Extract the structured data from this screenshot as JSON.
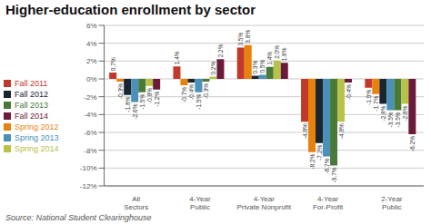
{
  "chart_data": {
    "type": "bar",
    "title": "Higher-education enrollment by sector",
    "source": "Source: National Student Clearinghouse",
    "categories": [
      "All\nSectors",
      "4-Year\nPublic",
      "4-Year\nPrivate Nonprofit",
      "4-Year\nFor-Profit",
      "2-Year\nPublic"
    ],
    "series": [
      {
        "name": "Fall 2011",
        "color": "#C1392B",
        "values": [
          0.7,
          1.4,
          3.5,
          -4.8,
          -1.0
        ],
        "value_labels": [
          "0.7%",
          "1.4%",
          "3.5%",
          "-4.8%",
          "-1.0%"
        ]
      },
      {
        "name": "Spring 2012",
        "color": "#E8820C",
        "values": [
          -0.3,
          -0.7,
          3.8,
          -8.2,
          -1.7
        ],
        "value_labels": [
          "-0.3%",
          "-0.7%",
          "3.8%",
          "-8.2%",
          "-1.7%"
        ]
      },
      {
        "name": "Fall 2012",
        "color": "#1A252F",
        "values": [
          -1.8,
          -0.4,
          0.35,
          -7.2,
          -2.8
        ],
        "value_labels": [
          "-1.8%",
          "-0.4%",
          "0.3%",
          "-7.2%",
          "-2.8%"
        ]
      },
      {
        "name": "Spring 2013",
        "color": "#4A90B8",
        "values": [
          -2.6,
          -1.5,
          0.45,
          -8.7,
          -3.5
        ],
        "value_labels": [
          "-2.6%",
          "-1.5%",
          "0.5%",
          "-8.7%",
          "-3.5%"
        ]
      },
      {
        "name": "Fall 2013",
        "color": "#4A7A3A",
        "values": [
          -1.5,
          -0.3,
          1.35,
          -9.7,
          -3.5
        ],
        "value_labels": [
          "-1.5%",
          "-0.3%",
          "1.4%",
          "-9.7%",
          "-3.5%"
        ]
      },
      {
        "name": "Spring 2014",
        "color": "#B8C248",
        "values": [
          -0.8,
          0.25,
          2.05,
          -4.8,
          -2.8
        ],
        "value_labels": [
          "-0.8%",
          "0.2%",
          "2.0%",
          "-4.8%",
          "-2.8%"
        ]
      },
      {
        "name": "Fall 2014",
        "color": "#6B1A3A",
        "values": [
          -1.2,
          2.2,
          1.8,
          -0.4,
          -6.2
        ],
        "value_labels": [
          "-1.2%",
          "2.2%",
          "1.8%",
          "-0.4%",
          "-6.2%"
        ]
      }
    ],
    "ylim": [
      -12,
      6
    ],
    "yticks": [
      {
        "value": -12,
        "label": "-12%"
      },
      {
        "value": -10,
        "label": "-10%"
      },
      {
        "value": -8,
        "label": "-8%"
      },
      {
        "value": -6,
        "label": "-6%"
      },
      {
        "value": -4,
        "label": "-4%"
      },
      {
        "value": -2,
        "label": "-2%"
      },
      {
        "value": 0,
        "label": "0%"
      },
      {
        "value": 2,
        "label": "2%"
      },
      {
        "value": 4,
        "label": "4%"
      },
      {
        "value": 6,
        "label": "6%"
      }
    ],
    "grid": true,
    "legend": "left",
    "data_labels": true
  }
}
